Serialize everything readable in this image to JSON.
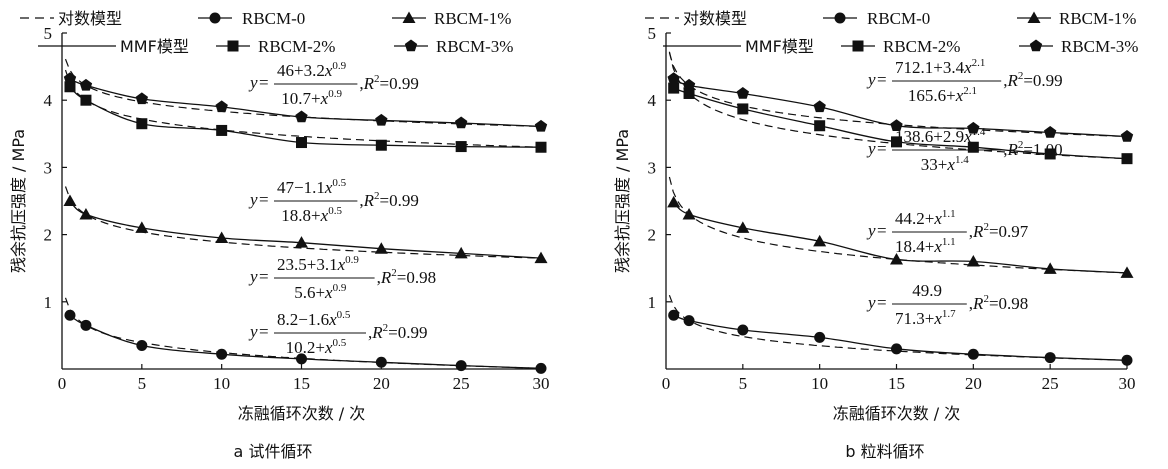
{
  "legend": {
    "log_model": "对数模型",
    "mmf_model": "MMF模型",
    "s0": "RBCM-0",
    "s1": "RBCM-1%",
    "s2": "RBCM-2%",
    "s3": "RBCM-3%"
  },
  "chart_data": [
    {
      "type": "line",
      "caption": "a 试件循环",
      "xlabel": "冻融循环次数 / 次",
      "ylabel": "残余抗压强度 / MPa",
      "xlim": [
        0,
        30
      ],
      "ylim": [
        0,
        5
      ],
      "xticks": [
        "0",
        "5",
        "10",
        "15",
        "20",
        "25",
        "30"
      ],
      "yticks": [
        "1",
        "2",
        "3",
        "4",
        "5"
      ],
      "x": [
        0.5,
        1.5,
        5,
        10,
        15,
        20,
        25,
        30
      ],
      "series": [
        {
          "name": "RBCM-0",
          "marker": "circle",
          "values": [
            0.8,
            0.65,
            0.35,
            0.22,
            0.15,
            0.1,
            0.05,
            0.01
          ],
          "equation": {
            "num": "8.2−1.6",
            "num_exp": "0.5",
            "den": "10.2+",
            "den_exp": "0.5",
            "r2": "0.99"
          }
        },
        {
          "name": "RBCM-1%",
          "marker": "triangle",
          "values": [
            2.5,
            2.3,
            2.1,
            1.95,
            1.88,
            1.79,
            1.72,
            1.65
          ],
          "equation": {
            "num": "23.5+3.1",
            "num_exp": "0.9",
            "den": "5.6+",
            "den_exp": "0.9",
            "r2": "0.98"
          }
        },
        {
          "name": "RBCM-2%",
          "marker": "square",
          "values": [
            4.2,
            4.0,
            3.65,
            3.55,
            3.37,
            3.33,
            3.31,
            3.3
          ],
          "equation": {
            "num": "47−1.1",
            "num_exp": "0.5",
            "den": "18.8+",
            "den_exp": "0.5",
            "r2": "0.99"
          }
        },
        {
          "name": "RBCM-3%",
          "marker": "pentagon",
          "values": [
            4.32,
            4.22,
            4.02,
            3.9,
            3.75,
            3.7,
            3.66,
            3.61
          ],
          "equation": {
            "num": "46+3.2",
            "num_exp": "0.9",
            "den": "10.7+",
            "den_exp": "0.9",
            "r2": "0.99"
          }
        }
      ]
    },
    {
      "type": "line",
      "caption": "b 粒料循环",
      "xlabel": "冻融循环次数 / 次",
      "ylabel": "残余抗压强度 / MPa",
      "xlim": [
        0,
        30
      ],
      "ylim": [
        0,
        5
      ],
      "xticks": [
        "0",
        "5",
        "10",
        "15",
        "20",
        "25",
        "30"
      ],
      "yticks": [
        "1",
        "2",
        "3",
        "4",
        "5"
      ],
      "x": [
        0.5,
        1.5,
        5,
        10,
        15,
        20,
        25,
        30
      ],
      "series": [
        {
          "name": "RBCM-0",
          "marker": "circle",
          "values": [
            0.8,
            0.72,
            0.58,
            0.47,
            0.3,
            0.22,
            0.17,
            0.13
          ],
          "equation": {
            "num": "49.9",
            "num_exp": "",
            "den": "71.3+",
            "den_exp": "1.7",
            "r2": "0.98"
          }
        },
        {
          "name": "RBCM-1%",
          "marker": "triangle",
          "values": [
            2.48,
            2.3,
            2.1,
            1.9,
            1.63,
            1.6,
            1.49,
            1.43
          ],
          "equation": {
            "num": "44.2+",
            "num_exp": "1.1",
            "den": "18.4+",
            "den_exp": "1.1",
            "r2": "0.97"
          }
        },
        {
          "name": "RBCM-2%",
          "marker": "square",
          "values": [
            4.18,
            4.1,
            3.87,
            3.62,
            3.38,
            3.3,
            3.2,
            3.13
          ],
          "equation": {
            "num": "138.6+2.9",
            "num_exp": "1.4",
            "den": "33+",
            "den_exp": "1.4",
            "r2": "1.00"
          }
        },
        {
          "name": "RBCM-3%",
          "marker": "pentagon",
          "values": [
            4.32,
            4.22,
            4.1,
            3.9,
            3.62,
            3.58,
            3.52,
            3.46
          ],
          "equation": {
            "num": "712.1+3.4",
            "num_exp": "2.1",
            "den": "165.6+",
            "den_exp": "2.1",
            "r2": "0.99"
          }
        }
      ]
    }
  ]
}
